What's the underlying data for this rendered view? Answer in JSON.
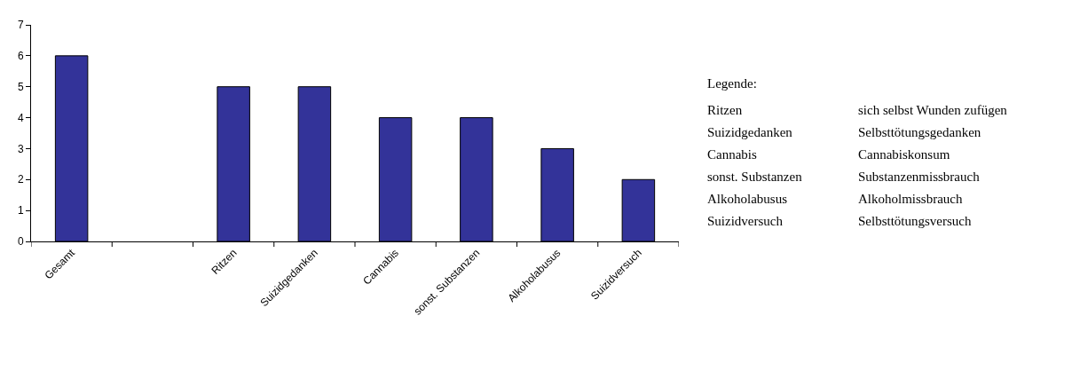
{
  "chart_data": {
    "type": "bar",
    "categories": [
      "Gesamt",
      null,
      "Ritzen",
      "Suizidgedanken",
      "Cannabis",
      "sonst. Substanzen",
      "Alkoholabusus",
      "Suizidversuch"
    ],
    "values": [
      6,
      null,
      5,
      5,
      4,
      4,
      3,
      2
    ],
    "color": "#333399",
    "ylim": [
      0,
      7
    ],
    "yticks": [
      0,
      1,
      2,
      3,
      4,
      5,
      6,
      7
    ],
    "annotations": [
      "Legende:",
      "Ritzen",
      "sich selbst Wunden zufügen",
      "Suizidgedanken",
      "Selbsttötungsgedanken",
      "Cannabis",
      "Cannabiskonsum",
      "sonst. Substanzen",
      "Substanzenmissbrauch",
      "Alkoholabusus",
      "Alkoholmissbrauch",
      "Suizidversuch",
      "Selbsttötungsversuch"
    ]
  }
}
